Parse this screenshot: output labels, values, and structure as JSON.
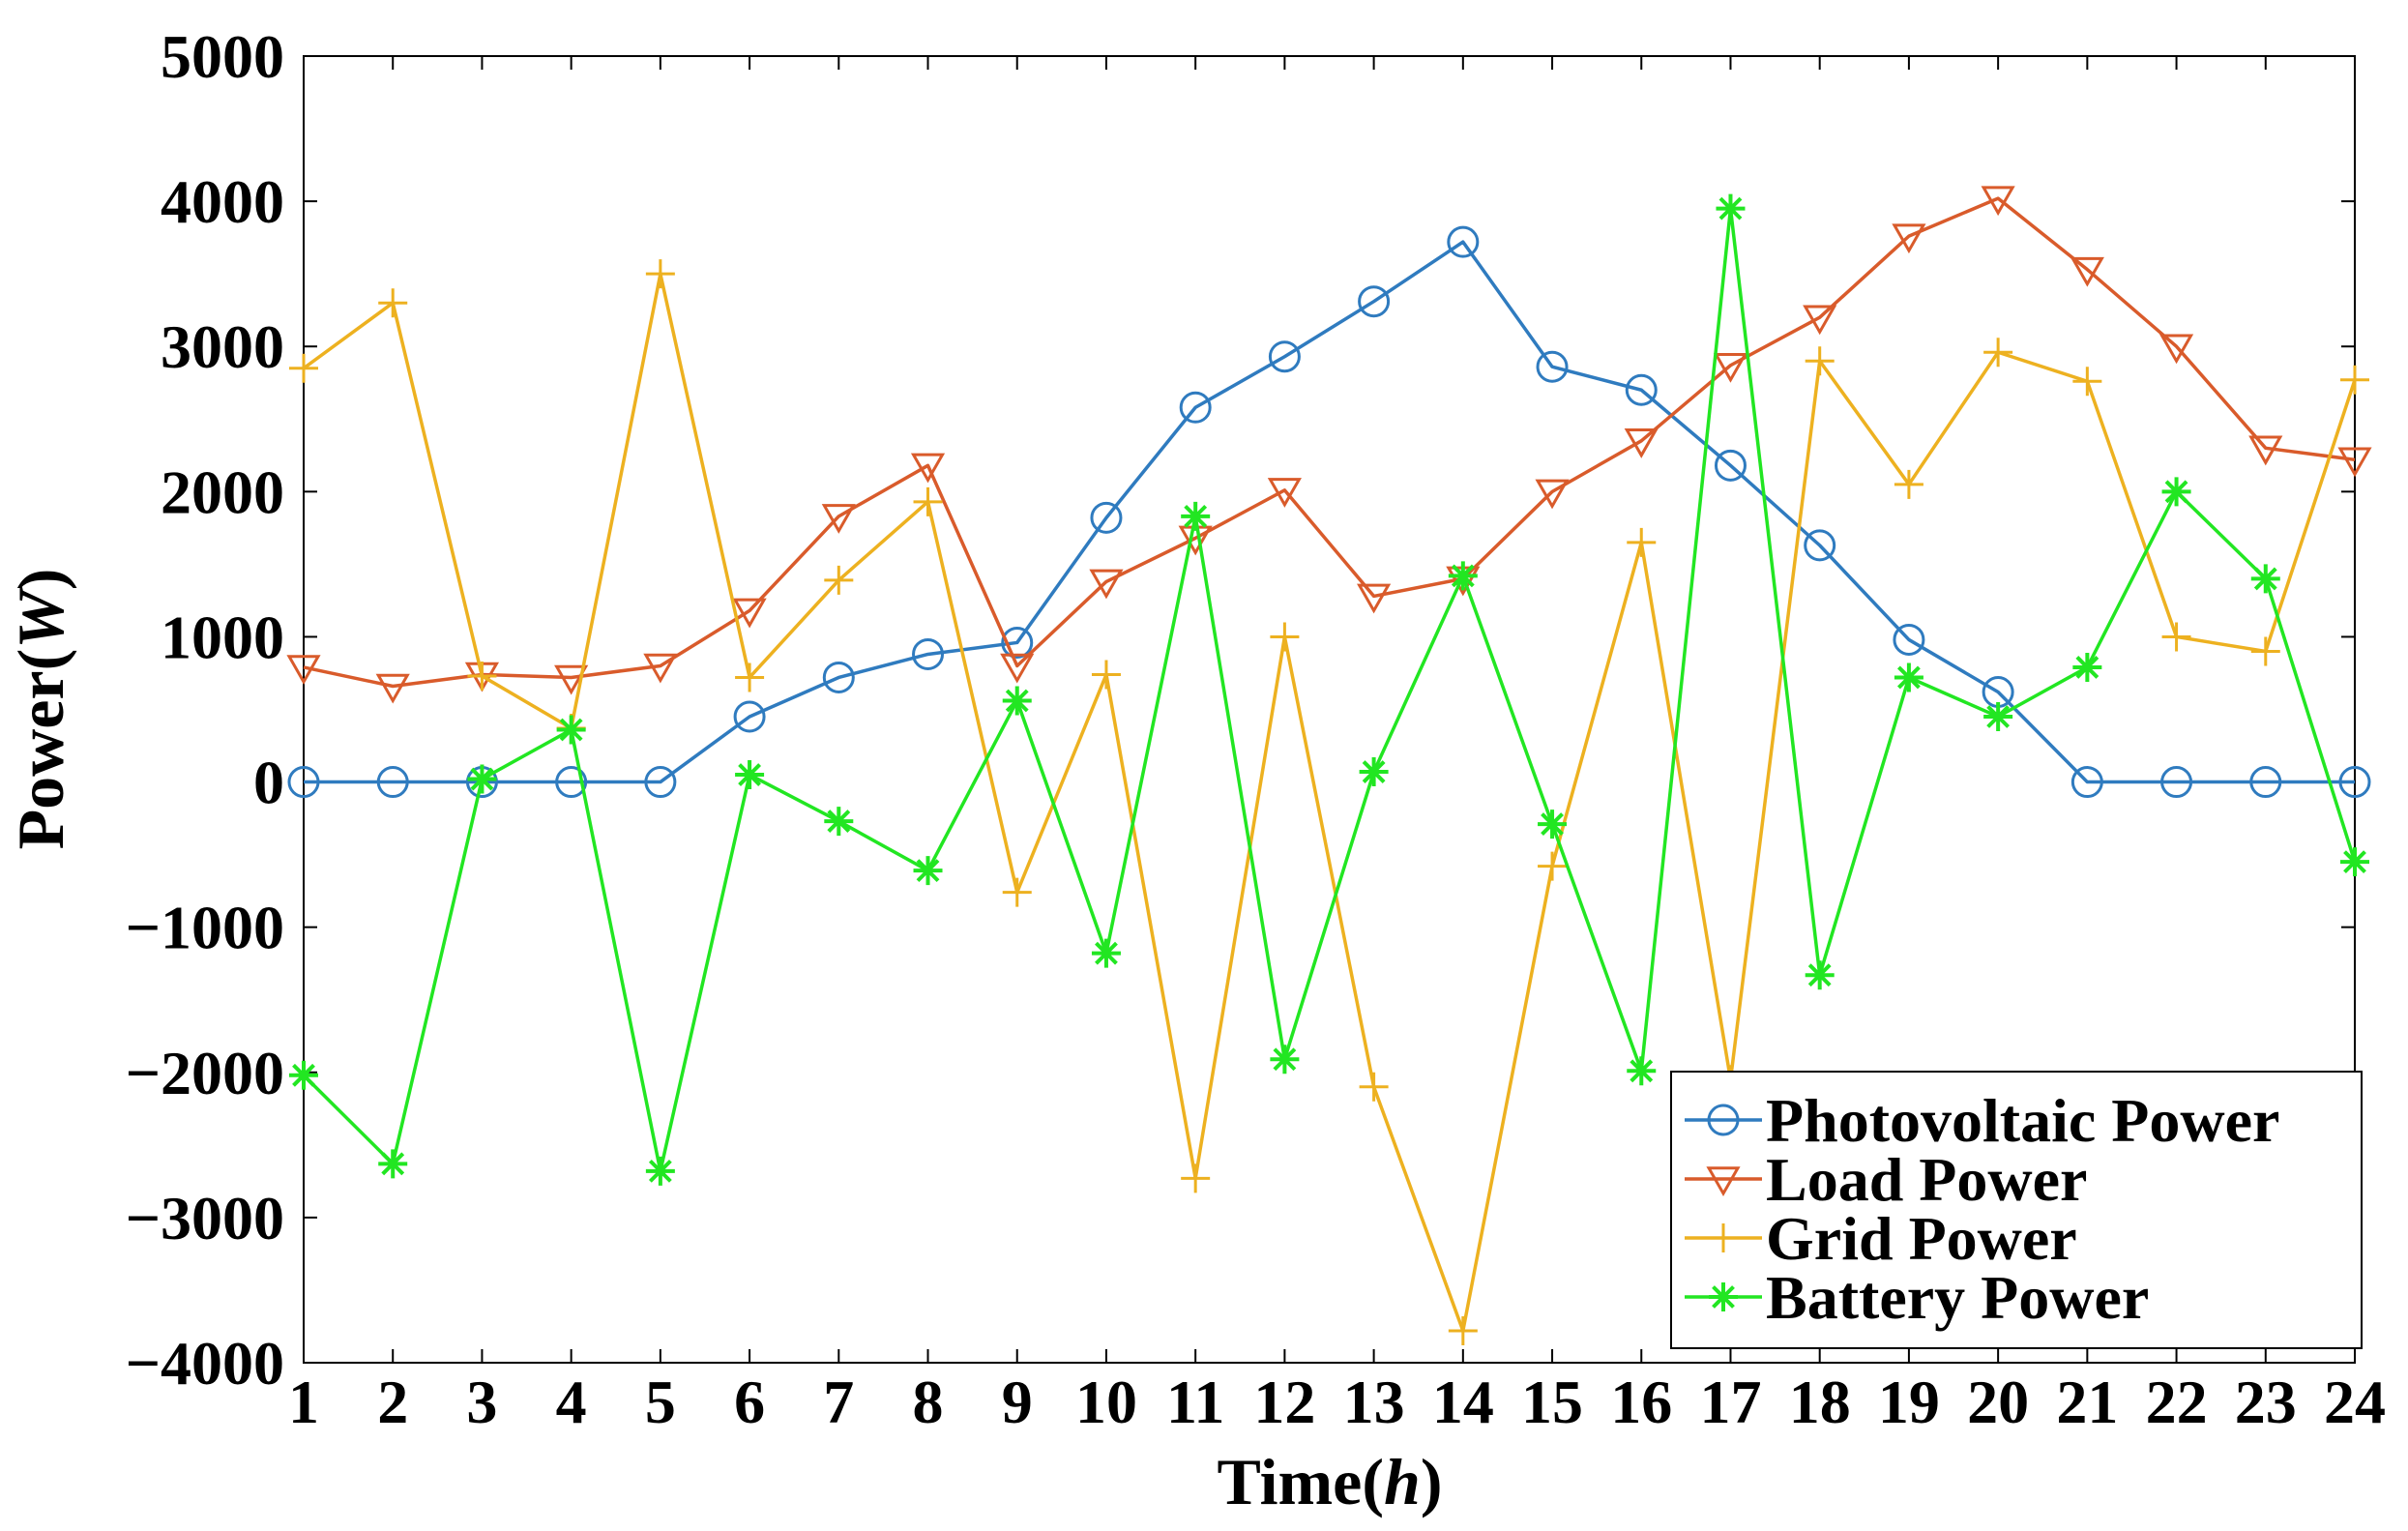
{
  "chart_data": {
    "type": "line",
    "xlabel_main": "Time(",
    "xlabel_italic": "h",
    "xlabel_close": ")",
    "ylabel_main": "Power(",
    "ylabel_italic": "W",
    "ylabel_close": ")",
    "x": [
      1,
      2,
      3,
      4,
      5,
      6,
      7,
      8,
      9,
      10,
      11,
      12,
      13,
      14,
      15,
      16,
      17,
      18,
      19,
      20,
      21,
      22,
      23,
      24
    ],
    "xlim": [
      1,
      24
    ],
    "ylim": [
      -4000,
      5000
    ],
    "yticks": [
      -4000,
      -3000,
      -2000,
      -1000,
      0,
      1000,
      2000,
      3000,
      4000,
      5000
    ],
    "ytick_labels": [
      "−4000",
      "−3000",
      "−2000",
      "−1000",
      "0",
      "1000",
      "2000",
      "3000",
      "4000",
      "5000"
    ],
    "grid": false,
    "legend_position": "bottom-right",
    "series": [
      {
        "name": "Photovoltaic Power",
        "color": "#2f7bbf",
        "marker": "circle",
        "values": [
          0,
          0,
          0,
          0,
          0,
          450,
          720,
          880,
          960,
          1820,
          2580,
          2930,
          3310,
          3720,
          2860,
          2700,
          2180,
          1630,
          980,
          620,
          0,
          0,
          0,
          0
        ]
      },
      {
        "name": "Load Power",
        "color": "#d95b2b",
        "marker": "triangle-down",
        "values": [
          790,
          660,
          740,
          720,
          800,
          1180,
          1830,
          2180,
          800,
          1380,
          1680,
          2010,
          1280,
          1400,
          2000,
          2350,
          2870,
          3200,
          3760,
          4020,
          3530,
          3000,
          2300,
          2220
        ]
      },
      {
        "name": "Grid Power",
        "color": "#edb120",
        "marker": "plus",
        "values": [
          2850,
          3300,
          730,
          370,
          3500,
          720,
          1390,
          1930,
          -760,
          740,
          -2730,
          1000,
          -2100,
          -3780,
          -580,
          1650,
          -2050,
          2900,
          2050,
          2960,
          2760,
          1000,
          900,
          2770
        ]
      },
      {
        "name": "Battery Power",
        "color": "#22e622",
        "marker": "asterisk",
        "values": [
          -2020,
          -2630,
          20,
          360,
          -2680,
          50,
          -270,
          -610,
          560,
          -1180,
          1830,
          -1910,
          70,
          1420,
          -290,
          -1990,
          3950,
          -1330,
          720,
          450,
          790,
          2000,
          1400,
          -550
        ]
      }
    ]
  }
}
